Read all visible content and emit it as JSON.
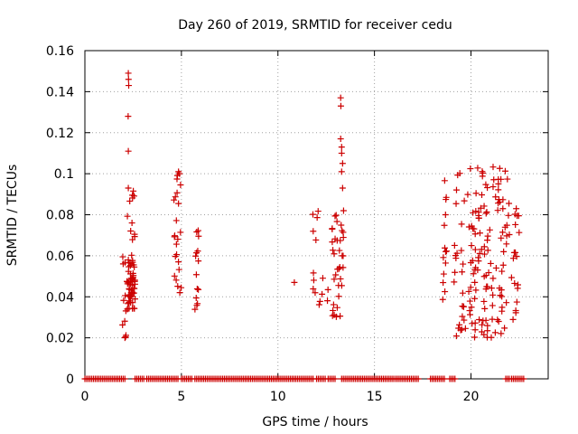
{
  "chart_data": {
    "type": "scatter",
    "title": "Day 260 of 2019, SRMTID for receiver cedu",
    "xlabel": "GPS time / hours",
    "ylabel": "SRMTID / TECUs",
    "xlim": [
      0,
      24
    ],
    "ylim": [
      0,
      0.16
    ],
    "xticks": [
      0,
      5,
      10,
      15,
      20
    ],
    "xtick_labels": [
      "0",
      "5",
      "10",
      "15",
      "20"
    ],
    "yticks": [
      0,
      0.02,
      0.04,
      0.06,
      0.08,
      0.1,
      0.12,
      0.14,
      0.16
    ],
    "ytick_labels": [
      "0",
      "0.02",
      "0.04",
      "0.06",
      "0.08",
      "0.1",
      "0.12",
      "0.14",
      "0.16"
    ],
    "grid": true,
    "marker": "+",
    "color": "#cc0000",
    "series": [
      {
        "name": "SRMTID",
        "clusters": [
          {
            "x": [
              1.95,
              2.2
            ],
            "y": [
              0.02,
              0.06
            ],
            "n": 12
          },
          {
            "x": [
              2.2,
              2.6
            ],
            "y": [
              0.034,
              0.058
            ],
            "n": 55
          },
          {
            "x": [
              2.2,
              2.6
            ],
            "y": [
              0.06,
              0.094
            ],
            "n": 12
          },
          {
            "x": [
              4.6,
              5.0
            ],
            "y": [
              0.036,
              0.1
            ],
            "n": 22
          },
          {
            "x": [
              5.7,
              5.9
            ],
            "y": [
              0.032,
              0.074
            ],
            "n": 14
          },
          {
            "x": [
              11.8,
              12.1
            ],
            "y": [
              0.035,
              0.082
            ],
            "n": 9
          },
          {
            "x": [
              12.1,
              12.6
            ],
            "y": [
              0.035,
              0.05
            ],
            "n": 6
          },
          {
            "x": [
              12.8,
              13.4
            ],
            "y": [
              0.03,
              0.08
            ],
            "n": 35
          },
          {
            "x": [
              18.5,
              18.8
            ],
            "y": [
              0.038,
              0.1
            ],
            "n": 14
          },
          {
            "x": [
              19.1,
              22.0
            ],
            "y": [
              0.02,
              0.104
            ],
            "n": 150
          },
          {
            "x": [
              22.1,
              22.5
            ],
            "y": [
              0.028,
              0.085
            ],
            "n": 18
          }
        ],
        "points": [
          {
            "x": 2.25,
            "y": 0.149
          },
          {
            "x": 2.26,
            "y": 0.146
          },
          {
            "x": 2.27,
            "y": 0.143
          },
          {
            "x": 2.24,
            "y": 0.128
          },
          {
            "x": 2.25,
            "y": 0.111
          },
          {
            "x": 2.25,
            "y": 0.093
          },
          {
            "x": 13.25,
            "y": 0.137
          },
          {
            "x": 13.26,
            "y": 0.133
          },
          {
            "x": 13.25,
            "y": 0.117
          },
          {
            "x": 13.3,
            "y": 0.113
          },
          {
            "x": 13.3,
            "y": 0.11
          },
          {
            "x": 13.35,
            "y": 0.105
          },
          {
            "x": 13.3,
            "y": 0.101
          },
          {
            "x": 13.35,
            "y": 0.093
          },
          {
            "x": 13.4,
            "y": 0.082
          },
          {
            "x": 4.85,
            "y": 0.101
          },
          {
            "x": 4.9,
            "y": 0.1
          },
          {
            "x": 10.85,
            "y": 0.047
          }
        ],
        "zero_segments": [
          [
            0.0,
            2.1
          ],
          [
            2.6,
            3.1
          ],
          [
            3.2,
            4.9
          ],
          [
            5.0,
            5.6
          ],
          [
            5.7,
            11.9
          ],
          [
            12.0,
            12.5
          ],
          [
            12.6,
            13.0
          ],
          [
            13.3,
            16.0
          ],
          [
            16.1,
            17.3
          ],
          [
            17.9,
            18.7
          ],
          [
            18.9,
            19.2
          ],
          [
            21.8,
            22.0
          ],
          [
            22.1,
            22.8
          ]
        ]
      }
    ]
  }
}
